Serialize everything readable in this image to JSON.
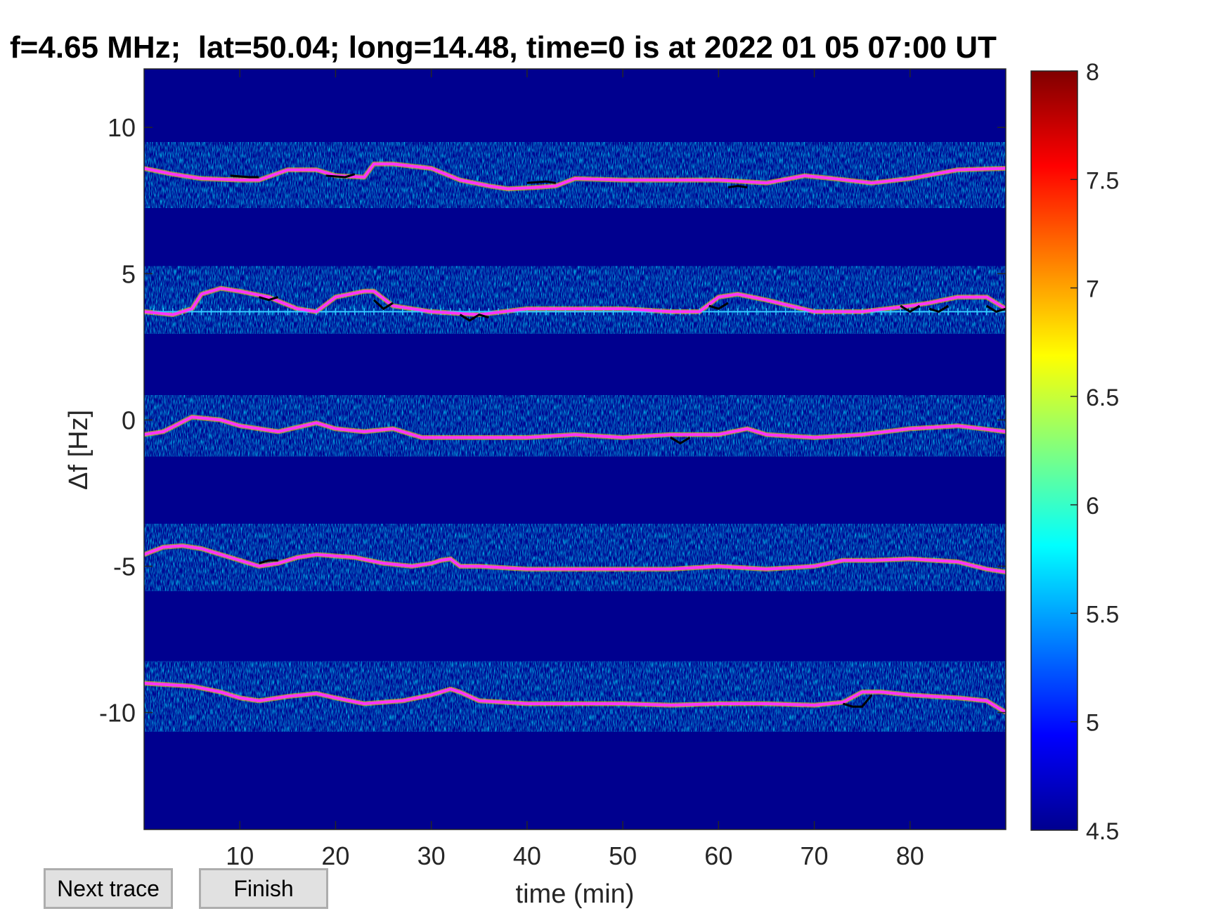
{
  "chart_data": {
    "type": "heatmap",
    "title": "f=4.65 MHz;  lat=50.04; long=14.48, time=0 is at 2022 01 05 07:00 UT",
    "xlabel": "time (min)",
    "ylabel": "Δf [Hz]",
    "xlim": [
      0,
      90
    ],
    "ylim": [
      -14,
      12
    ],
    "xticks": [
      10,
      20,
      30,
      40,
      50,
      60,
      70,
      80
    ],
    "yticks": [
      -10,
      -5,
      0,
      5,
      10
    ],
    "colorbar": {
      "ticks": [
        4.5,
        5,
        5.5,
        6,
        6.5,
        7,
        7.5,
        8
      ],
      "range": [
        4.5,
        8
      ],
      "colormap": "jet"
    },
    "colors": {
      "background": "#00008f",
      "trace_line": "#ff33ff",
      "reference_line": "#33ccff",
      "marker": "#000000"
    },
    "reference_line_y": 3.7,
    "bands": [
      {
        "x": [
          0,
          3,
          6,
          10,
          12,
          15,
          18,
          20,
          23,
          24,
          26,
          30,
          33,
          36,
          38,
          41,
          43,
          45,
          50,
          55,
          60,
          65,
          69,
          72,
          76,
          80,
          85,
          90
        ],
        "y": [
          8.6,
          8.4,
          8.25,
          8.2,
          8.2,
          8.55,
          8.55,
          8.35,
          8.3,
          8.75,
          8.75,
          8.6,
          8.2,
          8.0,
          7.9,
          7.95,
          8.0,
          8.25,
          8.2,
          8.2,
          8.2,
          8.1,
          8.35,
          8.25,
          8.1,
          8.25,
          8.55,
          8.6
        ]
      },
      {
        "x": [
          0,
          3,
          5,
          6,
          8,
          10,
          13,
          16,
          18,
          20,
          23,
          24,
          26,
          30,
          35,
          40,
          45,
          50,
          55,
          58,
          60,
          62,
          65,
          70,
          75,
          80,
          82,
          85,
          88,
          90
        ],
        "y": [
          3.7,
          3.6,
          3.8,
          4.3,
          4.5,
          4.4,
          4.2,
          3.8,
          3.7,
          4.2,
          4.4,
          4.4,
          3.9,
          3.7,
          3.6,
          3.8,
          3.8,
          3.8,
          3.7,
          3.7,
          4.2,
          4.3,
          4.1,
          3.7,
          3.7,
          3.9,
          4.0,
          4.2,
          4.2,
          3.8
        ]
      },
      {
        "x": [
          0,
          2,
          5,
          8,
          10,
          14,
          18,
          20,
          23,
          26,
          29,
          32,
          35,
          40,
          45,
          50,
          55,
          60,
          63,
          65,
          70,
          75,
          80,
          85,
          90
        ],
        "y": [
          -0.5,
          -0.4,
          0.1,
          0.0,
          -0.2,
          -0.4,
          -0.1,
          -0.3,
          -0.4,
          -0.3,
          -0.6,
          -0.6,
          -0.6,
          -0.6,
          -0.5,
          -0.6,
          -0.5,
          -0.5,
          -0.3,
          -0.5,
          -0.6,
          -0.5,
          -0.3,
          -0.2,
          -0.4
        ]
      },
      {
        "x": [
          0,
          2,
          4,
          6,
          8,
          10,
          12,
          14,
          16,
          18,
          22,
          25,
          28,
          30,
          31,
          32,
          33,
          35,
          40,
          45,
          50,
          55,
          60,
          65,
          70,
          73,
          76,
          80,
          85,
          88,
          90
        ],
        "y": [
          -4.6,
          -4.35,
          -4.3,
          -4.4,
          -4.6,
          -4.8,
          -5.0,
          -4.9,
          -4.7,
          -4.6,
          -4.7,
          -4.9,
          -5.0,
          -4.9,
          -4.8,
          -4.75,
          -5.0,
          -5.0,
          -5.1,
          -5.1,
          -5.1,
          -5.1,
          -5.0,
          -5.1,
          -5.0,
          -4.8,
          -4.8,
          -4.75,
          -4.85,
          -5.1,
          -5.2
        ]
      },
      {
        "x": [
          0,
          5,
          8,
          10,
          12,
          15,
          18,
          20,
          23,
          27,
          30,
          32,
          33,
          35,
          40,
          50,
          55,
          60,
          65,
          70,
          73,
          75,
          77,
          80,
          85,
          88,
          90
        ],
        "y": [
          -9.0,
          -9.1,
          -9.3,
          -9.5,
          -9.6,
          -9.45,
          -9.35,
          -9.5,
          -9.7,
          -9.6,
          -9.4,
          -9.2,
          -9.3,
          -9.6,
          -9.7,
          -9.7,
          -9.75,
          -9.7,
          -9.7,
          -9.75,
          -9.65,
          -9.3,
          -9.3,
          -9.4,
          -9.5,
          -9.6,
          -10.0
        ]
      }
    ],
    "black_marks": [
      {
        "x": [
          9,
          11,
          12
        ],
        "y": [
          8.35,
          8.3,
          8.3
        ]
      },
      {
        "x": [
          19,
          21,
          22
        ],
        "y": [
          8.35,
          8.3,
          8.4
        ]
      },
      {
        "x": [
          40,
          42,
          43
        ],
        "y": [
          8.1,
          8.15,
          8.1
        ]
      },
      {
        "x": [
          61,
          62,
          63
        ],
        "y": [
          7.95,
          8.0,
          7.95
        ]
      },
      {
        "x": [
          12,
          13,
          14
        ],
        "y": [
          4.2,
          4.1,
          4.2
        ]
      },
      {
        "x": [
          24,
          25,
          26
        ],
        "y": [
          4.1,
          3.8,
          4.0
        ]
      },
      {
        "x": [
          33,
          34,
          35,
          36
        ],
        "y": [
          3.6,
          3.4,
          3.6,
          3.5
        ]
      },
      {
        "x": [
          59,
          60,
          61
        ],
        "y": [
          3.9,
          3.8,
          4.0
        ]
      },
      {
        "x": [
          79,
          80,
          81
        ],
        "y": [
          3.9,
          3.7,
          3.9
        ]
      },
      {
        "x": [
          82,
          83,
          84
        ],
        "y": [
          3.8,
          3.7,
          3.9
        ]
      },
      {
        "x": [
          88,
          89,
          90
        ],
        "y": [
          3.9,
          3.7,
          3.8
        ]
      },
      {
        "x": [
          55,
          56,
          57
        ],
        "y": [
          -0.6,
          -0.8,
          -0.6
        ]
      },
      {
        "x": [
          12,
          13,
          14
        ],
        "y": [
          -4.9,
          -4.8,
          -4.8
        ]
      },
      {
        "x": [
          73,
          74,
          75,
          76
        ],
        "y": [
          -9.7,
          -9.8,
          -9.8,
          -9.4
        ]
      }
    ]
  },
  "buttons": {
    "next_trace": "Next trace",
    "finish": "Finish"
  }
}
